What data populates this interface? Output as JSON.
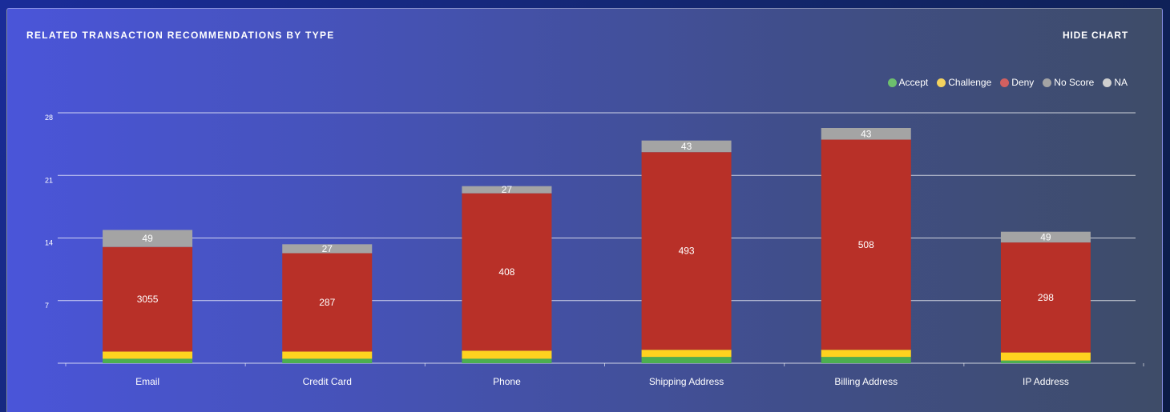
{
  "header": {
    "title": "RELATED TRANSACTION RECOMMENDATIONS BY TYPE",
    "hide_chart_label": "HIDE CHART"
  },
  "colors": {
    "accept": "#4caf50",
    "challenge": "#ffd21f",
    "deny": "#b83028",
    "no_score": "#a4a4a4",
    "na": "#c8c8c8"
  },
  "legend": [
    {
      "label": "Accept",
      "color": "#6dbf6d"
    },
    {
      "label": "Challenge",
      "color": "#f4d35e"
    },
    {
      "label": "Deny",
      "color": "#d16060"
    },
    {
      "label": "No Score",
      "color": "#a4a4a4"
    },
    {
      "label": "NA",
      "color": "#cfcfcf"
    }
  ],
  "chart_data": {
    "type": "bar",
    "stacked": true,
    "categories": [
      "Email",
      "Credit Card",
      "Phone",
      "Shipping Address",
      "Billing Address",
      "IP Address"
    ],
    "yticks": [
      7,
      14,
      21,
      28
    ],
    "ylim": [
      0,
      28
    ],
    "grid": true,
    "legend_position": "top-right",
    "series": [
      {
        "name": "Accept",
        "color": "#4caf50",
        "values": [
          0.5,
          0.5,
          0.5,
          0.7,
          0.7,
          0.3
        ]
      },
      {
        "name": "Challenge",
        "color": "#ffd21f",
        "values": [
          0.8,
          0.8,
          0.9,
          0.8,
          0.8,
          0.9
        ]
      },
      {
        "name": "Deny",
        "color": "#b83028",
        "values": [
          11.7,
          11.0,
          17.6,
          22.1,
          23.5,
          12.3
        ]
      },
      {
        "name": "No Score",
        "color": "#a4a4a4",
        "values": [
          1.9,
          1.0,
          0.8,
          1.3,
          1.3,
          1.2
        ]
      }
    ],
    "data_labels": {
      "Deny": [
        "3055",
        "287",
        "408",
        "493",
        "508",
        "298"
      ],
      "No Score": [
        "49",
        "27",
        "27",
        "43",
        "43",
        "49"
      ]
    }
  }
}
